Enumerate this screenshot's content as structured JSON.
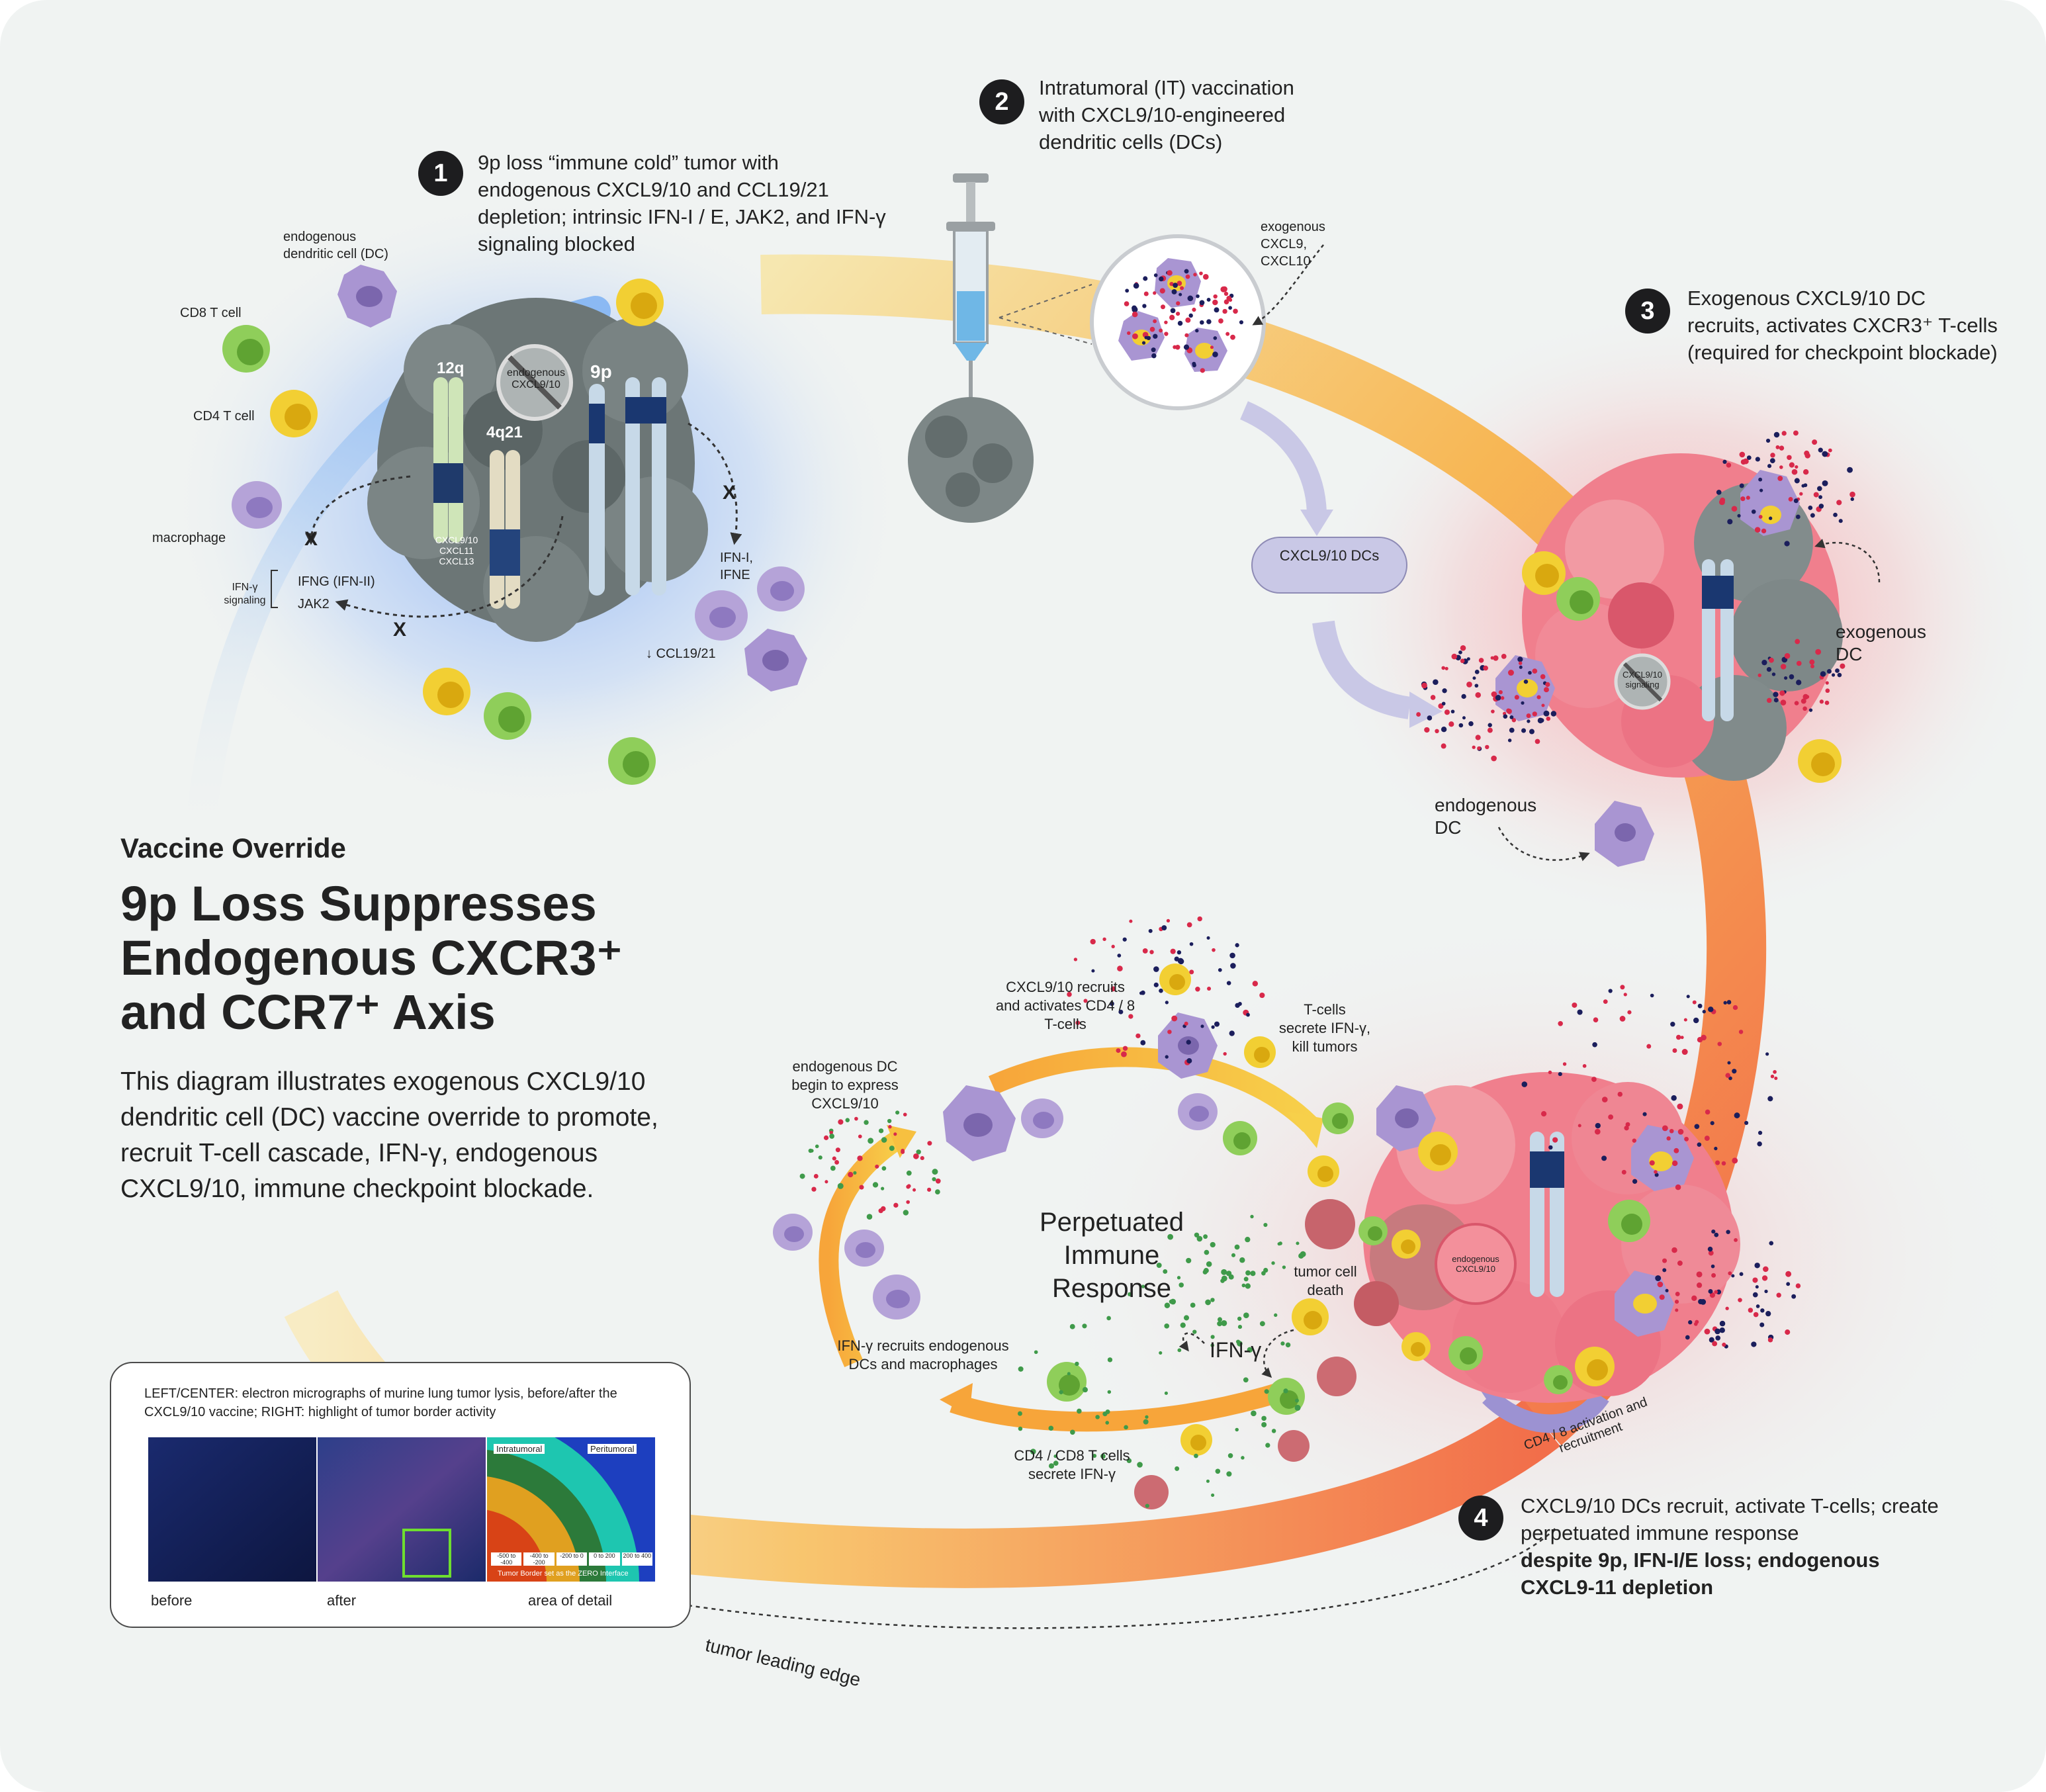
{
  "colors": {
    "background": "#f0f3f2",
    "blue_glow": "#7aa6f0",
    "red_glow": "#f5a3a5",
    "arc_start": "#f7eab8",
    "arc_end": "#f3764a",
    "dc_purple": "#a995d2",
    "tcell_yellow": "#f5d33c",
    "tcell_green": "#8fce5a",
    "tumor_grey": "#6f7a79",
    "tumor_pink": "#f07f8d"
  },
  "steps": [
    {
      "num": "1",
      "text": "9p loss “immune cold” tumor with endogenous CXCL9/10 and CCL19/21 depletion; intrinsic IFN-I / E, JAK2, and IFN-γ signaling blocked"
    },
    {
      "num": "2",
      "text": "Intratumoral (IT) vaccination with CXCL9/10-engineered dendritic cells (DCs)"
    },
    {
      "num": "3",
      "text": "Exogenous CXCL9/10 DC recruits, activates CXCR3⁺ T-cells (required for checkpoint blockade)"
    },
    {
      "num": "4",
      "text_regular": "CXCL9/10 DCs recruit, activate T-cells; create perpetuated immune response",
      "text_bold": "despite 9p, IFN-I/E loss; endogenous CXCL9-11 depletion"
    }
  ],
  "header": {
    "kicker": "Vaccine Override",
    "title_line1": "9p Loss Suppresses",
    "title_line2": "Endogenous CXCR3⁺",
    "title_line3": "and CCR7⁺ Axis",
    "description": "This diagram illustrates exogenous CXCL9/10 dendritic cell (DC) vaccine override to promote, recruit T-cell cascade, IFN-γ, endogenous CXCL9/10, immune checkpoint blockade."
  },
  "panel1": {
    "endogenous_dc": "endogenous dendritic cell (DC)",
    "cd8": "CD8 T cell",
    "cd4": "CD4 T cell",
    "macrophage": "macrophage",
    "chr_12q": "12q",
    "chr_4q21": "4q21",
    "chr_9p": "9p",
    "endogenous_badge": "endogenous CXCL9/10",
    "cxcl_stack": "CXCL9/10 CXCL11 CXCL13",
    "x_mark": "X",
    "ifn_signaling": "IFN-γ signaling",
    "ifng": "IFNG (IFN-II)",
    "jak2": "JAK2",
    "ifn_i": "IFN-I, IFNE",
    "ccl": "↓ CCL19/21"
  },
  "panel2": {
    "exogenous": "exogenous CXCL9, CXCL10",
    "pill": "CXCL9/10 DCs"
  },
  "panel3": {
    "exogenous_dc": "exogenous DC",
    "endogenous_dc": "endogenous DC",
    "badge": "CXCL9/10 signaling"
  },
  "panel4": {
    "recruits": "CXCL9/10 recruits and activates CD4 / 8 T-cells",
    "tcells_secrete": "T-cells secrete IFN-γ, kill tumors",
    "dc_express": "endogenous DC begin to express CXCL9/10",
    "perpetuated": "Perpetuated Immune Response",
    "tumor_death": "tumor cell death",
    "ifn_gamma": "IFN-γ",
    "ifn_recruits": "IFN-γ recruits endogenous DCs and macrophages",
    "cd48_secrete": "CD4 / CD8 T cells secrete IFN-γ",
    "activation": "CD4 / 8 activation and recruitment",
    "badge": "endogenous CXCL9/10"
  },
  "inset": {
    "caption": "LEFT/CENTER: electron micrographs of murine lung tumor lysis, before/after the CXCL9/10 vaccine; RIGHT: highlight of tumor border activity",
    "before": "before",
    "after": "after",
    "area": "area of detail",
    "intratumoral": "Intratumoral",
    "peritumoral": "Peritumoral",
    "border": "Tumor Border set as the ZERO Interface",
    "bins": [
      "-500 to -400",
      "-400 to -200",
      "-200 to 0",
      "0 to 200",
      "200 to 400"
    ]
  },
  "leading_edge": "tumor leading edge"
}
